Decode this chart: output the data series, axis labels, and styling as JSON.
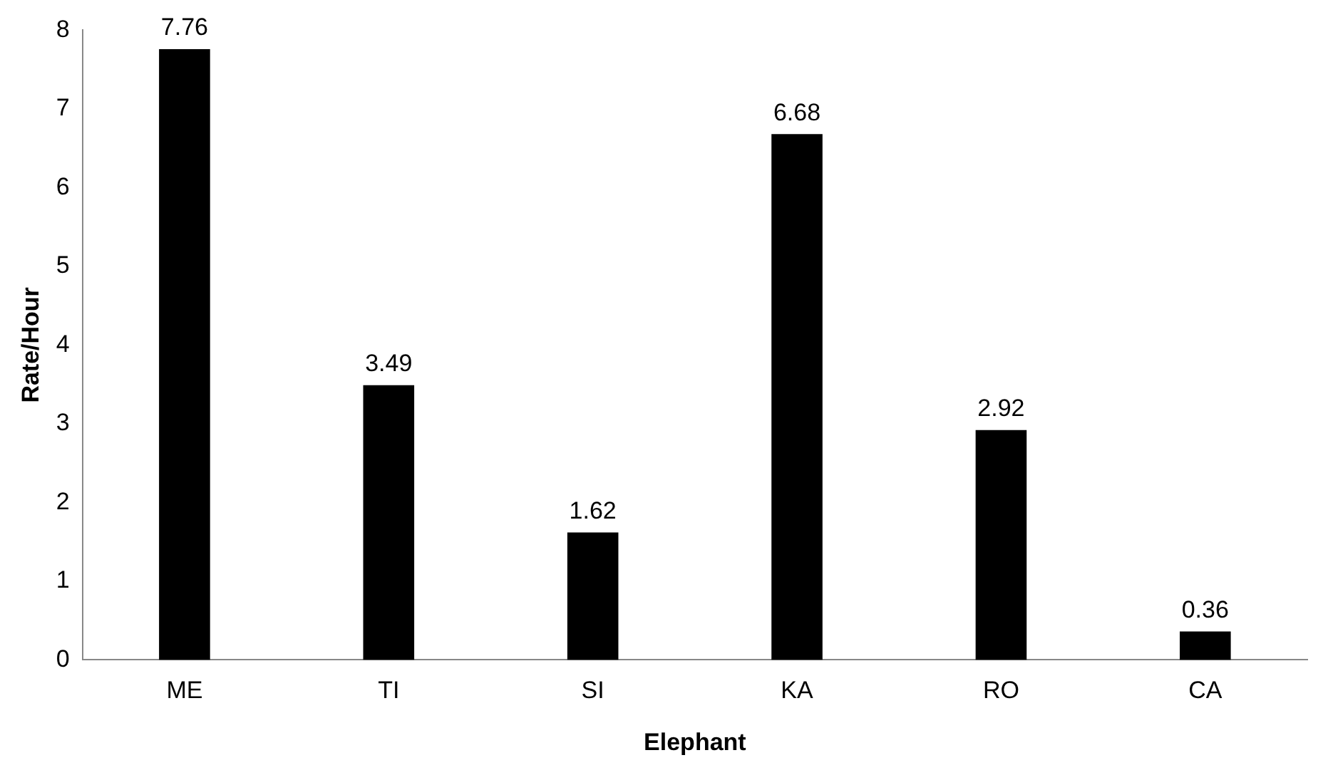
{
  "chart_data": {
    "type": "bar",
    "xlabel": "Elephant",
    "ylabel": "Rate/Hour",
    "categories": [
      "ME",
      "TI",
      "SI",
      "KA",
      "RO",
      "CA"
    ],
    "values": [
      7.76,
      3.49,
      1.62,
      6.68,
      2.92,
      0.36
    ],
    "color": "#000000",
    "ylim": [
      0,
      8
    ],
    "yticks": [
      0,
      1,
      2,
      3,
      4,
      5,
      6,
      7,
      8
    ],
    "grid": false,
    "legend": false,
    "data_labels": true
  }
}
